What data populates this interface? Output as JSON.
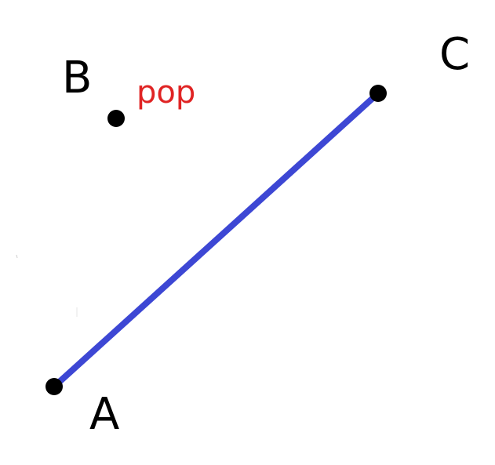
{
  "points": {
    "A": {
      "label": "A"
    },
    "B": {
      "label": "B"
    },
    "C": {
      "label": "C"
    }
  },
  "segment": {
    "from": "A",
    "to": "C",
    "color": "#3d47d4"
  },
  "annotation": {
    "text": "pop",
    "color": "#e02424",
    "near": "B"
  },
  "colors": {
    "point": "#000000",
    "background": "#ffffff"
  }
}
